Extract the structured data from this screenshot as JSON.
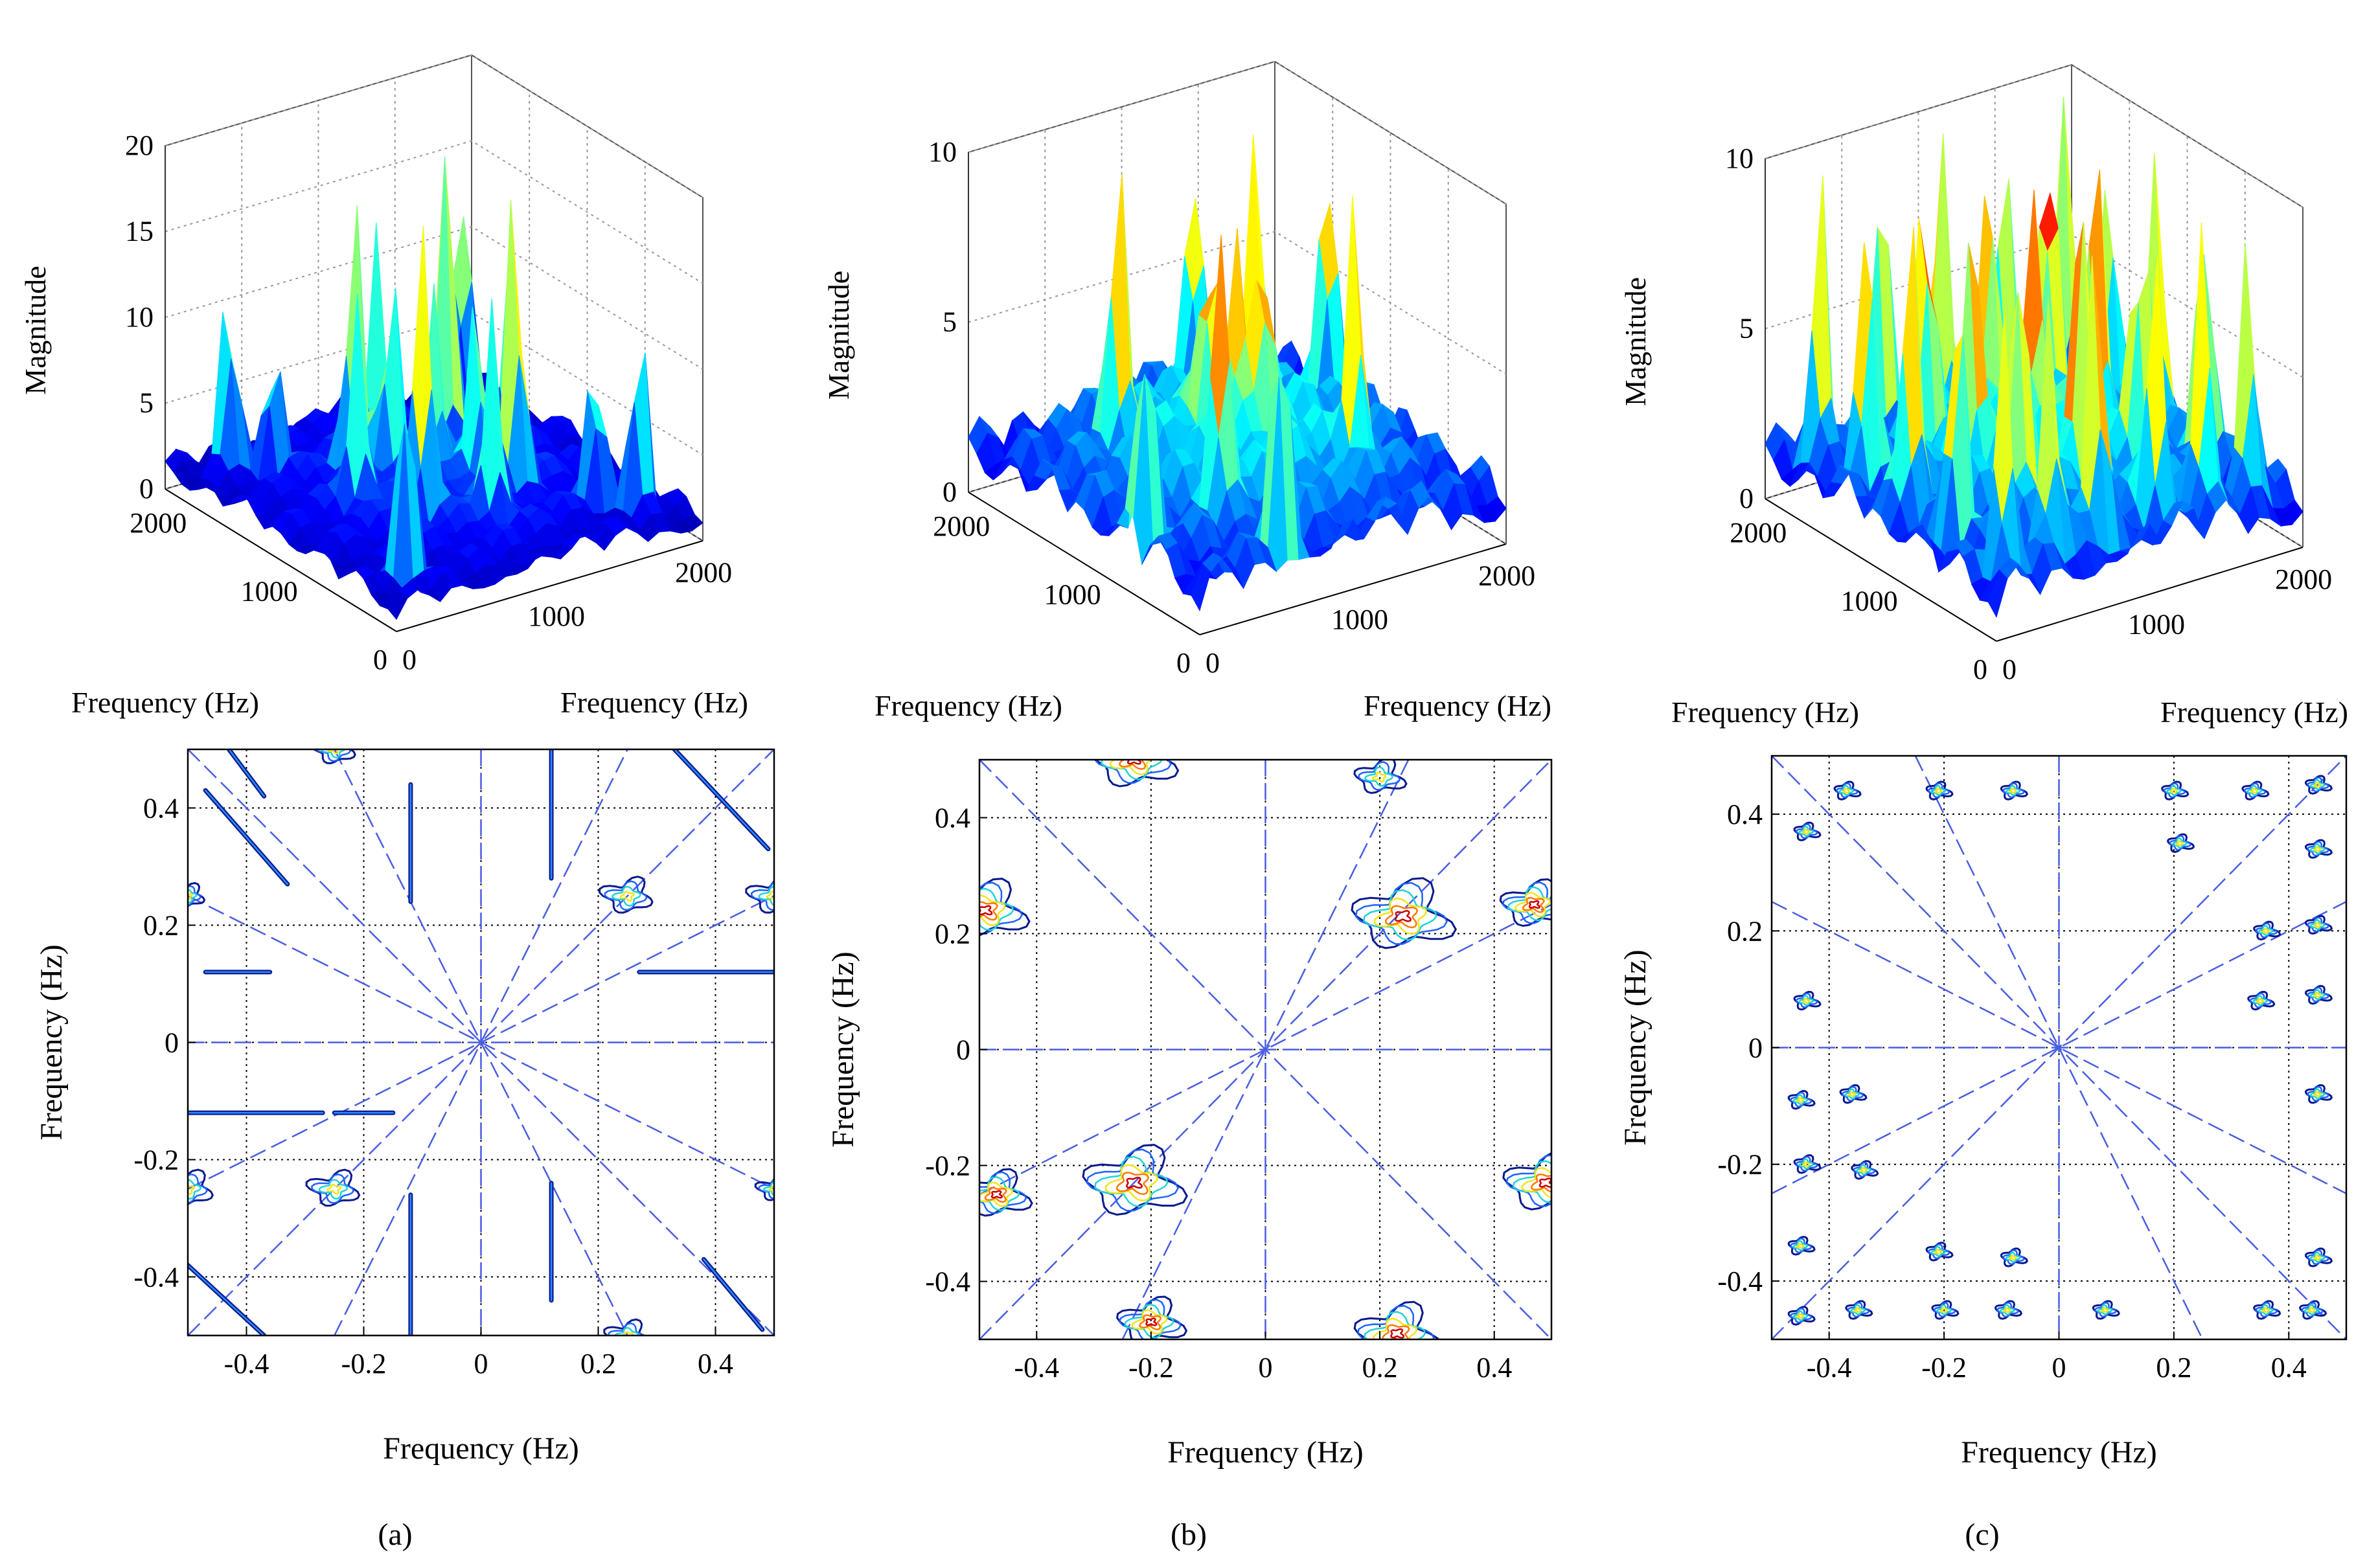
{
  "figure": {
    "caption_labels": [
      "(a)",
      "(b)",
      "(c)"
    ]
  },
  "chart_data": [
    {
      "panel": "a",
      "type": "surface3d",
      "zlabel": "Magnitude",
      "xlabel": "Frequency (Hz)",
      "ylabel": "Frequency (Hz)",
      "zlim": [
        0,
        20
      ],
      "zticks": [
        "0",
        "5",
        "10",
        "15",
        "20"
      ],
      "xticks": [
        "0",
        "1000",
        "2000"
      ],
      "yticks": [
        "0",
        "1000",
        "2000"
      ],
      "colormap": "jet",
      "grid": true,
      "peaks": [
        {
          "u": 0.35,
          "v": 0.35,
          "h": 18
        },
        {
          "u": 0.65,
          "v": 0.65,
          "h": 18
        },
        {
          "u": 0.35,
          "v": 0.65,
          "h": 17
        },
        {
          "u": 0.65,
          "v": 0.35,
          "h": 17
        },
        {
          "u": 0.12,
          "v": 0.12,
          "h": 14
        },
        {
          "u": 0.88,
          "v": 0.88,
          "h": 14
        },
        {
          "u": 0.12,
          "v": 0.88,
          "h": 13
        },
        {
          "u": 0.88,
          "v": 0.12,
          "h": 13
        },
        {
          "u": 0.25,
          "v": 0.5,
          "h": 12
        },
        {
          "u": 0.75,
          "v": 0.5,
          "h": 12
        },
        {
          "u": 0.5,
          "v": 0.25,
          "h": 12
        },
        {
          "u": 0.5,
          "v": 0.75,
          "h": 12
        },
        {
          "u": 0.5,
          "v": 0.5,
          "h": 10
        },
        {
          "u": 0.2,
          "v": 0.8,
          "h": 9
        },
        {
          "u": 0.8,
          "v": 0.2,
          "h": 9
        },
        {
          "u": 0.42,
          "v": 0.58,
          "h": 11
        },
        {
          "u": 0.58,
          "v": 0.42,
          "h": 11
        }
      ]
    },
    {
      "panel": "b",
      "type": "surface3d",
      "zlabel": "Magnitude",
      "xlabel": "Frequency (Hz)",
      "ylabel": "Frequency (Hz)",
      "zlim": [
        0,
        10
      ],
      "zticks": [
        "0",
        "5",
        "10"
      ],
      "xticks": [
        "0",
        "1000",
        "2000"
      ],
      "yticks": [
        "0",
        "1000",
        "2000"
      ],
      "colormap": "jet",
      "grid": true,
      "peaks": [
        {
          "u": 0.28,
          "v": 0.28,
          "h": 9
        },
        {
          "u": 0.72,
          "v": 0.72,
          "h": 9
        },
        {
          "u": 0.28,
          "v": 0.72,
          "h": 9
        },
        {
          "u": 0.72,
          "v": 0.28,
          "h": 9
        },
        {
          "u": 0.05,
          "v": 0.3,
          "h": 8
        },
        {
          "u": 0.95,
          "v": 0.7,
          "h": 8
        },
        {
          "u": 0.3,
          "v": 0.05,
          "h": 8
        },
        {
          "u": 0.7,
          "v": 0.95,
          "h": 8
        },
        {
          "u": 0.5,
          "v": 0.5,
          "h": 5
        },
        {
          "u": 0.45,
          "v": 0.55,
          "h": 6
        },
        {
          "u": 0.55,
          "v": 0.45,
          "h": 6
        }
      ]
    },
    {
      "panel": "c",
      "type": "surface3d",
      "zlabel": "Magnitude",
      "xlabel": "Frequency (Hz)",
      "ylabel": "Frequency (Hz)",
      "zlim": [
        0,
        10
      ],
      "zticks": [
        "0",
        "5",
        "10"
      ],
      "xticks": [
        "0",
        "1000",
        "2000"
      ],
      "yticks": [
        "0",
        "1000",
        "2000"
      ],
      "colormap": "jet",
      "grid": true,
      "peaks": [
        {
          "u": 0.1,
          "v": 0.1,
          "h": 9
        },
        {
          "u": 0.25,
          "v": 0.1,
          "h": 8
        },
        {
          "u": 0.4,
          "v": 0.1,
          "h": 9
        },
        {
          "u": 0.6,
          "v": 0.1,
          "h": 8
        },
        {
          "u": 0.75,
          "v": 0.1,
          "h": 9
        },
        {
          "u": 0.9,
          "v": 0.1,
          "h": 8
        },
        {
          "u": 0.1,
          "v": 0.3,
          "h": 8
        },
        {
          "u": 0.3,
          "v": 0.3,
          "h": 9
        },
        {
          "u": 0.5,
          "v": 0.3,
          "h": 8
        },
        {
          "u": 0.7,
          "v": 0.3,
          "h": 9
        },
        {
          "u": 0.9,
          "v": 0.3,
          "h": 8
        },
        {
          "u": 0.1,
          "v": 0.5,
          "h": 9
        },
        {
          "u": 0.3,
          "v": 0.5,
          "h": 8
        },
        {
          "u": 0.5,
          "v": 0.5,
          "h": 9
        },
        {
          "u": 0.7,
          "v": 0.5,
          "h": 8
        },
        {
          "u": 0.9,
          "v": 0.5,
          "h": 9
        },
        {
          "u": 0.1,
          "v": 0.7,
          "h": 8
        },
        {
          "u": 0.3,
          "v": 0.7,
          "h": 9
        },
        {
          "u": 0.5,
          "v": 0.7,
          "h": 8
        },
        {
          "u": 0.7,
          "v": 0.7,
          "h": 9
        },
        {
          "u": 0.9,
          "v": 0.7,
          "h": 8
        },
        {
          "u": 0.1,
          "v": 0.9,
          "h": 9
        },
        {
          "u": 0.3,
          "v": 0.9,
          "h": 8
        },
        {
          "u": 0.5,
          "v": 0.9,
          "h": 9
        },
        {
          "u": 0.7,
          "v": 0.9,
          "h": 8
        },
        {
          "u": 0.9,
          "v": 0.9,
          "h": 9
        }
      ]
    },
    {
      "panel": "a",
      "type": "contour",
      "xlabel": "Frequency (Hz)",
      "ylabel": "Frequency (Hz)",
      "xlim": [
        -0.5,
        0.5
      ],
      "ylim": [
        -0.5,
        0.5
      ],
      "xticks": [
        "-0.4",
        "-0.2",
        "0",
        "0.2",
        "0.4"
      ],
      "yticks": [
        "-0.4",
        "-0.2",
        "0",
        "0.2",
        "0.4"
      ],
      "dashed_line_slopes": [
        1,
        -1,
        0.5,
        -0.5,
        2,
        -2
      ],
      "blobs": [
        {
          "x": 0.25,
          "y": 0.25,
          "r": 0.03
        },
        {
          "x": -0.25,
          "y": -0.25,
          "r": 0.03
        },
        {
          "x": 0.25,
          "y": -0.5,
          "r": 0.025
        },
        {
          "x": -0.25,
          "y": 0.5,
          "r": 0.025
        },
        {
          "x": 0.5,
          "y": 0.25,
          "r": 0.03
        },
        {
          "x": -0.5,
          "y": -0.25,
          "r": 0.03
        },
        {
          "x": 0.5,
          "y": -0.25,
          "r": 0.02
        },
        {
          "x": -0.5,
          "y": 0.25,
          "r": 0.02
        }
      ],
      "streaks": [
        {
          "x1": -0.43,
          "y1": 0.5,
          "x2": -0.37,
          "y2": 0.42
        },
        {
          "x1": -0.47,
          "y1": 0.43,
          "x2": -0.33,
          "y2": 0.27
        },
        {
          "x1": 0.33,
          "y1": 0.5,
          "x2": 0.49,
          "y2": 0.33
        },
        {
          "x1": -0.5,
          "y1": -0.38,
          "x2": -0.37,
          "y2": -0.5
        },
        {
          "x1": 0.38,
          "y1": -0.37,
          "x2": 0.48,
          "y2": -0.49
        },
        {
          "x1": 0.12,
          "y1": 0.5,
          "x2": 0.12,
          "y2": 0.28
        },
        {
          "x1": -0.12,
          "y1": 0.44,
          "x2": -0.12,
          "y2": 0.24
        },
        {
          "x1": 0.12,
          "y1": -0.24,
          "x2": 0.12,
          "y2": -0.44
        },
        {
          "x1": -0.12,
          "y1": -0.26,
          "x2": -0.12,
          "y2": -0.5
        },
        {
          "x1": -0.47,
          "y1": 0.12,
          "x2": -0.36,
          "y2": 0.12
        },
        {
          "x1": 0.27,
          "y1": 0.12,
          "x2": 0.5,
          "y2": 0.12
        },
        {
          "x1": -0.5,
          "y1": -0.12,
          "x2": -0.27,
          "y2": -0.12
        },
        {
          "x1": -0.15,
          "y1": -0.12,
          "x2": -0.25,
          "y2": -0.12
        }
      ]
    },
    {
      "panel": "b",
      "type": "contour",
      "xlabel": "Frequency (Hz)",
      "ylabel": "Frequency (Hz)",
      "xlim": [
        -0.5,
        0.5
      ],
      "ylim": [
        -0.5,
        0.5
      ],
      "xticks": [
        "-0.4",
        "-0.2",
        "0",
        "0.2",
        "0.4"
      ],
      "yticks": [
        "-0.4",
        "-0.2",
        "0",
        "0.2",
        "0.4"
      ],
      "dashed_line_slopes": [
        1,
        -1,
        0.5,
        2
      ],
      "blobs": [
        {
          "x": -0.23,
          "y": 0.5,
          "r": 0.05
        },
        {
          "x": 0.24,
          "y": 0.23,
          "r": 0.06
        },
        {
          "x": -0.23,
          "y": -0.23,
          "r": 0.06
        },
        {
          "x": 0.23,
          "y": -0.49,
          "r": 0.05
        },
        {
          "x": -0.49,
          "y": 0.24,
          "r": 0.05
        },
        {
          "x": 0.49,
          "y": -0.23,
          "r": 0.05
        },
        {
          "x": -0.47,
          "y": -0.25,
          "r": 0.04
        },
        {
          "x": 0.47,
          "y": 0.25,
          "r": 0.04
        },
        {
          "x": -0.2,
          "y": -0.47,
          "r": 0.04
        },
        {
          "x": 0.2,
          "y": 0.47,
          "r": 0.03
        }
      ]
    },
    {
      "panel": "c",
      "type": "contour",
      "xlabel": "Frequency (Hz)",
      "ylabel": "Frequency (Hz)",
      "xlim": [
        -0.5,
        0.5
      ],
      "ylim": [
        -0.5,
        0.5
      ],
      "xticks": [
        "-0.4",
        "-0.2",
        "0",
        "0.2",
        "0.4"
      ],
      "yticks": [
        "-0.4",
        "-0.2",
        "0",
        "0.2",
        "0.4"
      ],
      "dashed_line_slopes": [
        1,
        -1,
        0.5,
        -0.5,
        -2
      ],
      "blobs": [
        {
          "x": -0.37,
          "y": 0.44,
          "r": 0.015
        },
        {
          "x": -0.21,
          "y": 0.44,
          "r": 0.015
        },
        {
          "x": -0.08,
          "y": 0.44,
          "r": 0.015
        },
        {
          "x": 0.2,
          "y": 0.44,
          "r": 0.015
        },
        {
          "x": 0.34,
          "y": 0.44,
          "r": 0.015
        },
        {
          "x": 0.45,
          "y": 0.45,
          "r": 0.015
        },
        {
          "x": -0.44,
          "y": 0.37,
          "r": 0.015
        },
        {
          "x": 0.21,
          "y": 0.35,
          "r": 0.015
        },
        {
          "x": 0.45,
          "y": 0.34,
          "r": 0.015
        },
        {
          "x": 0.36,
          "y": 0.2,
          "r": 0.015
        },
        {
          "x": 0.45,
          "y": 0.21,
          "r": 0.015
        },
        {
          "x": 0.35,
          "y": 0.08,
          "r": 0.015
        },
        {
          "x": 0.45,
          "y": 0.09,
          "r": 0.015
        },
        {
          "x": -0.44,
          "y": 0.08,
          "r": 0.015
        },
        {
          "x": -0.45,
          "y": -0.09,
          "r": 0.015
        },
        {
          "x": -0.36,
          "y": -0.08,
          "r": 0.015
        },
        {
          "x": 0.45,
          "y": -0.08,
          "r": 0.015
        },
        {
          "x": -0.44,
          "y": -0.2,
          "r": 0.015
        },
        {
          "x": -0.34,
          "y": -0.21,
          "r": 0.015
        },
        {
          "x": -0.45,
          "y": -0.34,
          "r": 0.015
        },
        {
          "x": -0.21,
          "y": -0.35,
          "r": 0.015
        },
        {
          "x": -0.08,
          "y": -0.36,
          "r": 0.015
        },
        {
          "x": 0.45,
          "y": -0.36,
          "r": 0.015
        },
        {
          "x": -0.45,
          "y": -0.46,
          "r": 0.015
        },
        {
          "x": -0.35,
          "y": -0.45,
          "r": 0.015
        },
        {
          "x": -0.2,
          "y": -0.45,
          "r": 0.015
        },
        {
          "x": -0.09,
          "y": -0.45,
          "r": 0.015
        },
        {
          "x": 0.08,
          "y": -0.45,
          "r": 0.015
        },
        {
          "x": 0.36,
          "y": -0.45,
          "r": 0.015
        },
        {
          "x": 0.44,
          "y": -0.45,
          "r": 0.015
        }
      ]
    }
  ]
}
